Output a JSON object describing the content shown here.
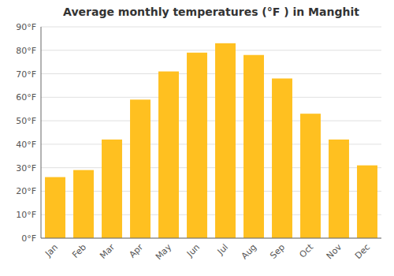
{
  "chart_data": {
    "type": "bar",
    "title": "Average monthly temperatures (°F ) in Manghit",
    "categories": [
      "Jan",
      "Feb",
      "Mar",
      "Apr",
      "May",
      "Jun",
      "Jul",
      "Aug",
      "Sep",
      "Oct",
      "Nov",
      "Dec"
    ],
    "values": [
      26,
      29,
      42,
      59,
      71,
      79,
      83,
      78,
      68,
      53,
      42,
      31
    ],
    "color": "#FFC020",
    "ylim": [
      0,
      90
    ],
    "yticks": [
      {
        "value": 0,
        "label": "0°F"
      },
      {
        "value": 10,
        "label": "10°F"
      },
      {
        "value": 20,
        "label": "20°F"
      },
      {
        "value": 30,
        "label": "30°F"
      },
      {
        "value": 40,
        "label": "40°F"
      },
      {
        "value": 50,
        "label": "50°F"
      },
      {
        "value": 60,
        "label": "60°F"
      },
      {
        "value": 70,
        "label": "70°F"
      },
      {
        "value": 80,
        "label": "80°F"
      },
      {
        "value": 90,
        "label": "90°F"
      }
    ],
    "grid": true
  }
}
